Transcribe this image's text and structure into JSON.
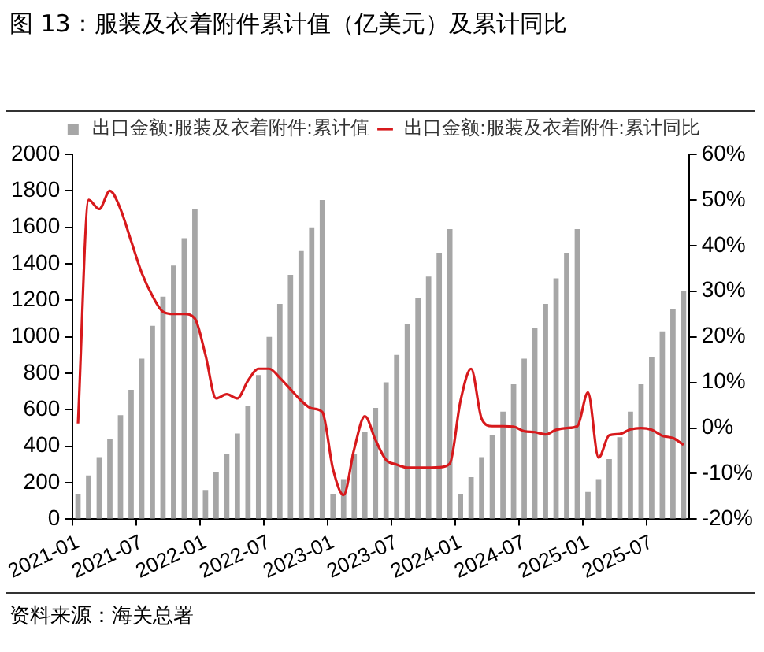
{
  "chart_data": {
    "type": "bar",
    "title": "图 13：服装及衣着附件累计值（亿美元）及累计同比",
    "annotations": [
      "资料来源：海关总署"
    ],
    "categories": [
      "2021-01",
      null,
      null,
      null,
      null,
      null,
      "2021-07",
      null,
      null,
      null,
      null,
      null,
      "2022-01",
      null,
      null,
      null,
      null,
      null,
      "2022-07",
      null,
      null,
      null,
      null,
      null,
      "2023-01",
      null,
      null,
      null,
      null,
      null,
      "2023-07",
      null,
      null,
      null,
      null,
      null,
      "2024-01",
      null,
      null,
      null,
      null,
      null,
      "2024-07",
      null,
      null,
      null,
      null,
      null,
      "2025-01",
      null,
      null,
      null,
      null,
      null,
      "2025-07",
      null,
      null,
      null
    ],
    "series": [
      {
        "name": "出口金额:服装及衣着附件:累计值",
        "color": "#a6a6a6",
        "values": [
          140,
          240,
          340,
          440,
          570,
          710,
          880,
          1060,
          1220,
          1390,
          1540,
          1700,
          160,
          260,
          360,
          470,
          620,
          790,
          1000,
          1180,
          1340,
          1470,
          1600,
          1750,
          140,
          220,
          360,
          480,
          610,
          750,
          900,
          1070,
          1210,
          1330,
          1460,
          1590,
          140,
          230,
          340,
          460,
          590,
          740,
          880,
          1050,
          1180,
          1320,
          1460,
          1590,
          150,
          220,
          330,
          450,
          590,
          740,
          890,
          1030,
          1150,
          1250
        ]
      },
      {
        "name": "出口金额:服装及衣着附件:累计同比",
        "type": "line",
        "axis": "y2",
        "color": "#d7191c",
        "values": [
          1,
          50,
          48,
          52,
          48,
          41,
          34,
          29,
          25.5,
          25,
          25,
          24,
          16,
          6.5,
          7.4,
          6.5,
          10.4,
          13,
          13,
          11,
          8.5,
          6,
          4.3,
          3.5,
          -9,
          -14.7,
          -4.6,
          2.6,
          -2.6,
          -7,
          -8,
          -8.7,
          -8.7,
          -8.7,
          -8.6,
          -7.8,
          5.9,
          13,
          2,
          0.4,
          0.4,
          0.3,
          -0.7,
          -0.9,
          -1.4,
          -0.4,
          0,
          0.4,
          7.8,
          -6.5,
          -1.6,
          -1.3,
          -0.3,
          0,
          -0.4,
          -1.7,
          -2.2,
          -3.7
        ]
      }
    ],
    "ylim": [
      0,
      2000
    ],
    "yticks": [
      0,
      200,
      400,
      600,
      800,
      1000,
      1200,
      1400,
      1600,
      1800,
      2000
    ],
    "y2lim": [
      -20,
      60
    ],
    "y2ticks": [
      {
        "value": -20,
        "label": "-20%"
      },
      {
        "value": -10,
        "label": "-10%"
      },
      {
        "value": 0,
        "label": "0%"
      },
      {
        "value": 10,
        "label": "10%"
      },
      {
        "value": 20,
        "label": "20%"
      },
      {
        "value": 30,
        "label": "30%"
      },
      {
        "value": 40,
        "label": "40%"
      },
      {
        "value": 50,
        "label": "50%"
      },
      {
        "value": 60,
        "label": "60%"
      }
    ],
    "legend": "top",
    "grid": false,
    "marker": "none",
    "line_style": "solid"
  }
}
